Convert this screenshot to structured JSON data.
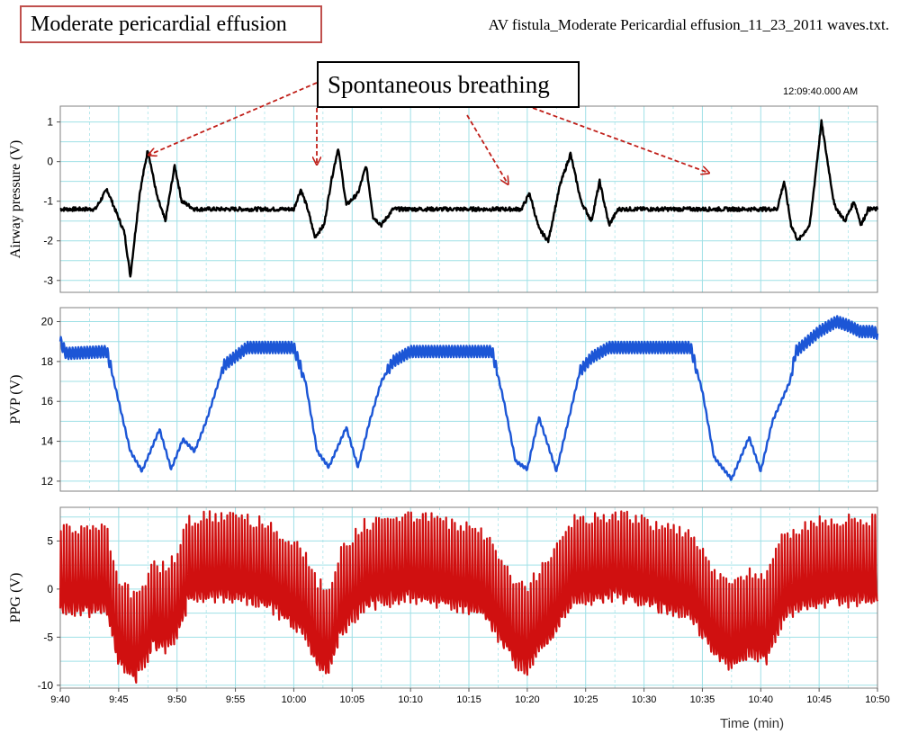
{
  "header": {
    "title": "Moderate pericardial effusion",
    "file": "AV fistula_Moderate Pericardial effusion_11_23_2011 waves.txt.",
    "annotation": "Spontaneous breathing",
    "timestamp": "12:09:40.000 AM"
  },
  "colors": {
    "grid": "#9fe0e6",
    "airway": "#000000",
    "pvp": "#1c56d6",
    "ppg": "#d01010",
    "arrow": "#c0201a",
    "frame": "#808080"
  },
  "chart_data": [
    {
      "type": "line",
      "name": "airway",
      "ylabel": "Airway pressure (V)",
      "ylim": [
        -3.3,
        1.4
      ],
      "yticks": [
        1,
        0,
        -1,
        -2,
        -3
      ],
      "yticklabels": [
        "1",
        "0",
        "-1",
        "-2",
        "-3"
      ],
      "grid": true,
      "x_minutes": [
        0,
        3,
        4,
        5.5,
        6,
        6.8,
        7.5,
        8.3,
        9,
        9.8,
        10.4,
        11.5,
        20,
        20.6,
        21.2,
        21.8,
        22.6,
        23.2,
        23.8,
        24.5,
        25.5,
        26.2,
        26.8,
        27.5,
        28.5,
        39.5,
        40.2,
        41,
        41.8,
        42.8,
        43.7,
        44.6,
        45.5,
        46.2,
        47,
        47.8,
        48.5,
        49.5,
        50.5,
        52,
        61.4,
        62,
        62.6,
        63.2,
        64.2,
        65.2,
        66.3,
        67.2,
        68,
        68.6,
        69.2,
        70
      ],
      "values": [
        -1.2,
        -1.2,
        -0.7,
        -1.8,
        -2.9,
        -0.8,
        0.3,
        -0.9,
        -1.5,
        -0.1,
        -1.0,
        -1.2,
        -1.2,
        -0.7,
        -1.2,
        -1.9,
        -1.6,
        -0.5,
        0.35,
        -1.1,
        -0.8,
        -0.1,
        -1.4,
        -1.6,
        -1.2,
        -1.2,
        -0.8,
        -1.7,
        -2.0,
        -0.6,
        0.2,
        -1.0,
        -1.5,
        -0.5,
        -1.6,
        -1.2,
        -1.2,
        -1.2,
        -1.2,
        -1.2,
        -1.2,
        -0.5,
        -1.6,
        -2.0,
        -1.6,
        1.0,
        -1.1,
        -1.5,
        -1.0,
        -1.6,
        -1.2,
        -1.2
      ],
      "noise": 0.05
    },
    {
      "type": "line",
      "name": "pvp",
      "ylabel": "PVP (V)",
      "ylim": [
        11.5,
        20.7
      ],
      "yticks": [
        20,
        18,
        16,
        14,
        12
      ],
      "yticklabels": [
        "20",
        "18",
        "16",
        "14",
        "12"
      ],
      "grid": true,
      "x_minutes": [
        0,
        0.5,
        4,
        5,
        6,
        7,
        8.5,
        9.5,
        10.5,
        11.5,
        12.5,
        14,
        16,
        20,
        21,
        22,
        23,
        24.5,
        25.5,
        26.5,
        27.5,
        28.5,
        30,
        32,
        37,
        38,
        39,
        40,
        41,
        42.5,
        43.5,
        44.5,
        45.5,
        47,
        49,
        54,
        55,
        56,
        57.5,
        59,
        60,
        61,
        62.5,
        63,
        65,
        66.5,
        67.5,
        68.5,
        69.5,
        70
      ],
      "values": [
        19,
        18.4,
        18.5,
        16,
        13.5,
        12.5,
        14.6,
        12.6,
        14.1,
        13.5,
        15,
        17.8,
        18.7,
        18.7,
        17,
        13.5,
        12.7,
        14.7,
        12.7,
        15,
        17,
        18,
        18.5,
        18.5,
        18.5,
        16,
        13,
        12.6,
        15.2,
        12.5,
        15,
        17.5,
        18.2,
        18.7,
        18.7,
        18.7,
        16.5,
        13.2,
        12.1,
        14.2,
        12.5,
        15,
        17,
        18.5,
        19.5,
        20,
        19.8,
        19.5,
        19.5,
        19.4
      ],
      "ripple": 0.3
    },
    {
      "type": "line",
      "name": "ppg",
      "ylabel": "PPG (V)",
      "ylim": [
        -10.3,
        8.5
      ],
      "yticks": [
        5,
        0,
        -5,
        -10
      ],
      "yticklabels": [
        "5",
        "0",
        "-5",
        "-10"
      ],
      "grid": true,
      "x_minutes": [
        0,
        4,
        5,
        6.5,
        8,
        9,
        10,
        11,
        14,
        18,
        21,
        22,
        23,
        24,
        26,
        30,
        36,
        38,
        39,
        40,
        42,
        44,
        48,
        54,
        56,
        57.5,
        59,
        60.5,
        62,
        64,
        66,
        70
      ],
      "values": [
        1.5,
        1.5,
        -4,
        -5.5,
        -2,
        -2.5,
        -1,
        2.5,
        3,
        2,
        -1,
        -4,
        -5,
        -1,
        2,
        3,
        1.5,
        -2,
        -4,
        -4.5,
        -1.5,
        2.5,
        3,
        1,
        -3,
        -4.5,
        -3,
        -3.5,
        1,
        2,
        2.5,
        2.5
      ],
      "amplitude": 8.6,
      "beats_per_min": 4
    }
  ],
  "x_axis": {
    "label": "Time (min)",
    "tick_labels": [
      "9:40",
      "9:45",
      "9:50",
      "9:55",
      "10:00",
      "10:05",
      "10:10",
      "10:15",
      "10:20",
      "10:25",
      "10:30",
      "10:35",
      "10:40",
      "10:45",
      "10:50"
    ],
    "range_minutes": [
      0,
      70
    ]
  },
  "arrows": [
    {
      "from": [
        352,
        92
      ],
      "to": [
        166,
        172
      ]
    },
    {
      "from": [
        352,
        120
      ],
      "to": [
        352,
        182
      ]
    },
    {
      "from": [
        519,
        128
      ],
      "to": [
        564,
        204
      ]
    },
    {
      "from": [
        592,
        120
      ],
      "to": [
        787,
        192
      ]
    }
  ]
}
